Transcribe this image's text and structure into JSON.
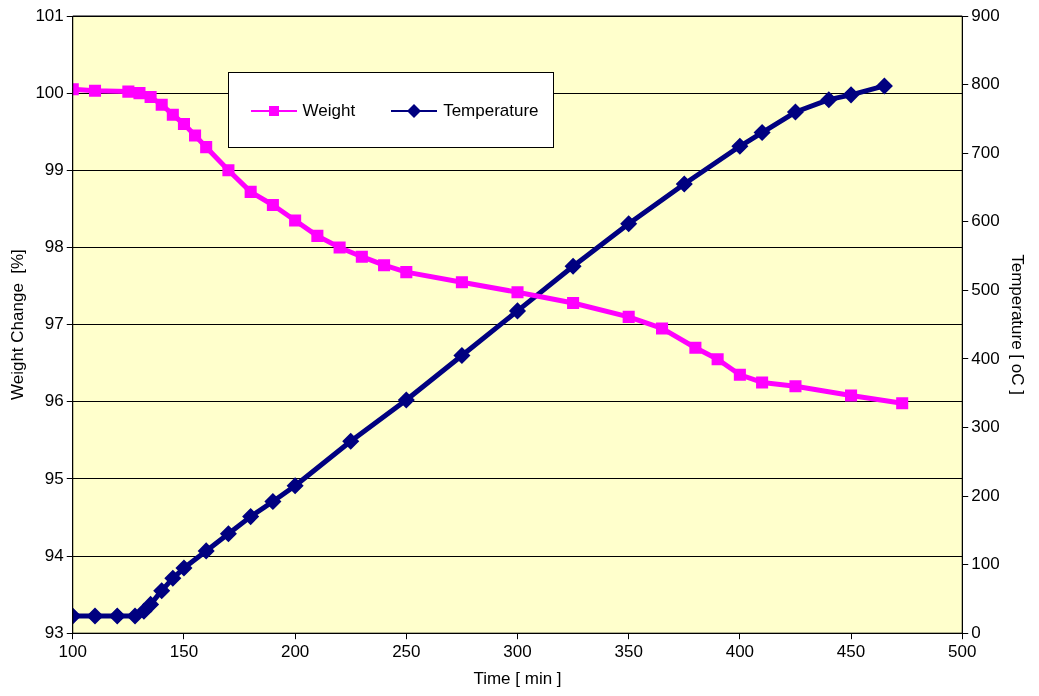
{
  "chart_data": {
    "type": "line",
    "xlabel": "Time [ min ]",
    "ylabel": "Weight Change  [%]",
    "y2label": "Temperature [ oC ]",
    "xlim": [
      100,
      500
    ],
    "xticks": [
      100,
      150,
      200,
      250,
      300,
      350,
      400,
      450,
      500
    ],
    "ylim": [
      93,
      101
    ],
    "yticks": [
      93,
      94,
      95,
      96,
      97,
      98,
      99,
      100,
      101
    ],
    "y2lim": [
      0,
      900
    ],
    "y2ticks": [
      0,
      100,
      200,
      300,
      400,
      500,
      600,
      700,
      800,
      900
    ],
    "grid": "y",
    "legend": "top left",
    "series": [
      {
        "name": "Weight",
        "color": "#ff00ff",
        "marker": "square",
        "x": [
          100,
          110,
          125,
          130,
          135,
          140,
          145,
          150,
          155,
          160,
          170,
          180,
          190,
          200,
          210,
          220,
          230,
          240,
          250,
          275,
          300,
          325,
          350,
          365,
          380,
          390,
          400,
          410,
          425,
          450,
          473
        ],
        "values": [
          100.05,
          100.03,
          100.02,
          100.0,
          99.95,
          99.85,
          99.72,
          99.6,
          99.45,
          99.3,
          99.0,
          98.72,
          98.55,
          98.35,
          98.15,
          98.0,
          97.88,
          97.77,
          97.68,
          97.55,
          97.42,
          97.28,
          97.1,
          96.95,
          96.7,
          96.55,
          96.35,
          96.25,
          96.2,
          96.08,
          95.98
        ]
      },
      {
        "name": "Temperature",
        "color": "#000080",
        "marker": "diamond",
        "axis": "y2",
        "x": [
          100,
          110,
          120,
          128,
          132,
          135,
          140,
          145,
          150,
          160,
          170,
          180,
          190,
          200,
          225,
          250,
          275,
          300,
          325,
          350,
          375,
          400,
          410,
          425,
          440,
          450,
          465
        ],
        "values": [
          25,
          25,
          25,
          25,
          32,
          42,
          62,
          80,
          95,
          120,
          145,
          170,
          192,
          215,
          280,
          340,
          405,
          470,
          535,
          597,
          655,
          710,
          730,
          760,
          778,
          785,
          798
        ]
      }
    ]
  }
}
